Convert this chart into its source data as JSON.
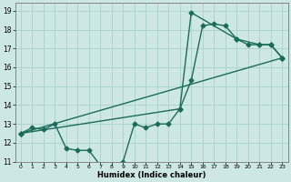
{
  "xlabel": "Humidex (Indice chaleur)",
  "xlim": [
    -0.5,
    23.5
  ],
  "ylim": [
    11,
    19.4
  ],
  "yticks": [
    11,
    12,
    13,
    14,
    15,
    16,
    17,
    18,
    19
  ],
  "bg_color": "#cde8e4",
  "grid_color": "#aacfca",
  "line_color": "#1a6b5a",
  "line1_x": [
    0,
    1,
    2,
    3,
    4,
    5,
    6,
    7,
    8,
    9,
    10,
    11,
    12,
    13,
    14,
    15,
    16,
    17,
    18,
    19,
    20,
    21,
    22,
    23
  ],
  "line1_y": [
    12.5,
    12.8,
    12.7,
    13.0,
    11.7,
    11.6,
    11.6,
    10.8,
    10.8,
    11.0,
    13.0,
    12.8,
    13.0,
    13.0,
    13.8,
    15.3,
    18.2,
    18.3,
    18.2,
    17.5,
    17.2,
    17.2,
    17.2,
    16.5
  ],
  "line2_x": [
    0,
    14,
    15,
    19,
    21,
    22,
    23
  ],
  "line2_y": [
    12.5,
    13.8,
    18.9,
    17.5,
    17.2,
    17.2,
    16.5
  ],
  "line3_x": [
    0,
    23
  ],
  "line3_y": [
    12.5,
    16.5
  ],
  "marker": "D",
  "markersize": 2.5,
  "linewidth": 1.0
}
